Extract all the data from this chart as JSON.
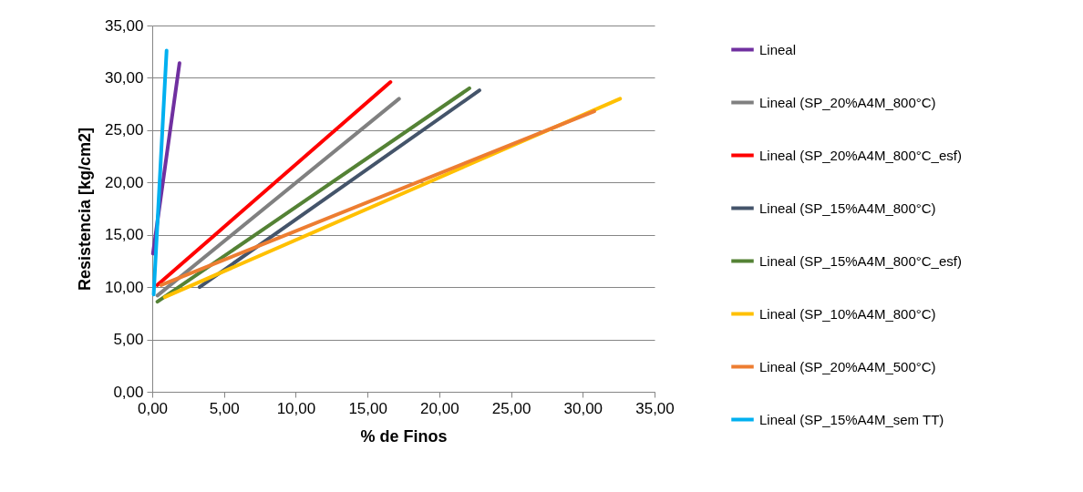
{
  "chart_data": {
    "type": "line",
    "xlabel": "% de Finos",
    "ylabel": "Resistencia [kg/cm2]",
    "xlim": [
      0,
      35
    ],
    "ylim": [
      0,
      35
    ],
    "xticks": [
      {
        "value": 0,
        "label": "0,00"
      },
      {
        "value": 5,
        "label": "5,00"
      },
      {
        "value": 10,
        "label": "10,00"
      },
      {
        "value": 15,
        "label": "15,00"
      },
      {
        "value": 20,
        "label": "20,00"
      },
      {
        "value": 25,
        "label": "25,00"
      },
      {
        "value": 30,
        "label": "30,00"
      },
      {
        "value": 35,
        "label": "35,00"
      }
    ],
    "yticks": [
      {
        "value": 0,
        "label": "0,00"
      },
      {
        "value": 5,
        "label": "5,00"
      },
      {
        "value": 10,
        "label": "10,00"
      },
      {
        "value": 15,
        "label": "15,00"
      },
      {
        "value": 20,
        "label": "20,00"
      },
      {
        "value": 25,
        "label": "25,00"
      },
      {
        "value": 30,
        "label": "30,00"
      },
      {
        "value": 35,
        "label": "35,00"
      }
    ],
    "grid": "y",
    "legend": "right",
    "line_style": "solid",
    "marker": "none",
    "series": [
      {
        "name": "Lineal",
        "color": "#7030a0",
        "x": [
          0.05,
          1.9
        ],
        "values": [
          13.2,
          31.4
        ]
      },
      {
        "name": "Lineal (SP_20%A4M_800°C)",
        "color": "#808080",
        "x": [
          0.36,
          17.2
        ],
        "values": [
          9.2,
          28.0
        ]
      },
      {
        "name": "Lineal (SP_20%A4M_800°C_esf)",
        "color": "#ff0000",
        "x": [
          0.36,
          16.6
        ],
        "values": [
          10.2,
          29.6
        ]
      },
      {
        "name": "Lineal (SP_15%A4M_800°C)",
        "color": "#44546a",
        "x": [
          3.3,
          22.8
        ],
        "values": [
          10.0,
          28.8
        ]
      },
      {
        "name": "Lineal (SP_15%A4M_800°C_esf)",
        "color": "#548235",
        "x": [
          0.36,
          22.1
        ],
        "values": [
          8.6,
          29.0
        ]
      },
      {
        "name": "Lineal (SP_10%A4M_800°C)",
        "color": "#ffc000",
        "x": [
          0.87,
          32.6
        ],
        "values": [
          9.05,
          28.0
        ]
      },
      {
        "name": "Lineal (SP_20%A4M_500°C)",
        "color": "#ed7d31",
        "x": [
          0.62,
          30.8
        ],
        "values": [
          10.2,
          26.8
        ]
      },
      {
        "name": "Lineal (SP_15%A4M_sem TT)",
        "color": "#00b0f0",
        "x": [
          0.1,
          1.0
        ],
        "values": [
          9.3,
          32.6
        ]
      }
    ]
  }
}
